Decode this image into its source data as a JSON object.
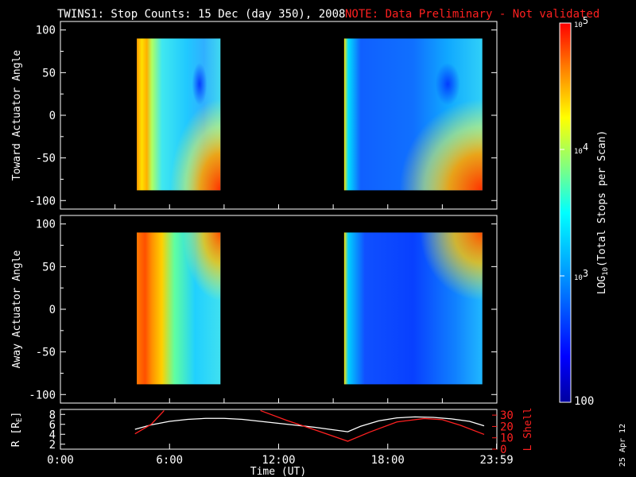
{
  "header": {
    "title": "TWINS1: Stop Counts: 15 Dec (day 350), 2008",
    "note": "NOTE: Data Preliminary - Not validated"
  },
  "side_date": "25 Apr 12",
  "colors": {
    "background": "#000000",
    "axes": "#ffffff",
    "note": "#ff2020",
    "r_line": "#ffffff",
    "lshell_line": "#ff2020"
  },
  "chart_data": [
    {
      "type": "heatmap",
      "ylabel": "Toward Actuator Angle",
      "ylim": [
        -110,
        110
      ],
      "xlim": [
        0,
        24
      ],
      "yticks": [
        -100,
        -50,
        0,
        50,
        100
      ],
      "ytick_labels": [
        "-100",
        "-50",
        "0",
        "50",
        "100"
      ],
      "blocks": [
        {
          "x": [
            4.2,
            8.8
          ],
          "y": [
            -88,
            90
          ]
        },
        {
          "x": [
            15.6,
            23.2
          ],
          "y": [
            -88,
            90
          ]
        }
      ]
    },
    {
      "type": "heatmap",
      "ylabel": "Away Actuator Angle",
      "ylim": [
        -110,
        110
      ],
      "xlim": [
        0,
        24
      ],
      "yticks": [
        -100,
        -50,
        0,
        50,
        100
      ],
      "ytick_labels": [
        "-100",
        "-50",
        "0",
        "50",
        "100"
      ],
      "blocks": [
        {
          "x": [
            4.2,
            8.8
          ],
          "y": [
            -88,
            90
          ]
        },
        {
          "x": [
            15.6,
            23.2
          ],
          "y": [
            -88,
            90
          ]
        }
      ]
    },
    {
      "type": "line",
      "ylabel": "R [RE]",
      "ylabel_main": "R [R",
      "ylabel_sub": "E",
      "ylabel_close": "]",
      "ylim": [
        1,
        9
      ],
      "yticks": [
        2,
        4,
        6,
        8
      ],
      "ytick_labels": [
        "2",
        "4",
        "6",
        "8"
      ],
      "right_ylabel": "L Shell",
      "right_ylim": [
        0,
        35
      ],
      "right_yticks": [
        0,
        10,
        20,
        30
      ],
      "right_ytick_labels": [
        "0",
        "10",
        "20",
        "30"
      ],
      "xlabel": "Time (UT)",
      "xlim": [
        0,
        24
      ],
      "xticks": [
        0,
        6,
        12,
        18,
        23.983
      ],
      "xtick_labels": [
        "0:00",
        "6:00",
        "12:00",
        "18:00",
        "23:59"
      ],
      "series": [
        {
          "axis": "left",
          "x": [
            4.1,
            5,
            6,
            7,
            8,
            9,
            10,
            11,
            12,
            13,
            14,
            15,
            15.8,
            16.5,
            17.5,
            18.5,
            19.5,
            20.5,
            21.5,
            22.5,
            23.3
          ],
          "y": [
            5.0,
            5.9,
            6.6,
            7.0,
            7.2,
            7.2,
            7.0,
            6.6,
            6.2,
            5.8,
            5.4,
            4.9,
            4.5,
            5.6,
            6.7,
            7.3,
            7.5,
            7.4,
            7.1,
            6.6,
            5.7
          ]
        },
        {
          "axis": "right",
          "segments": [
            {
              "x": [
                4.1,
                5,
                5.7
              ],
              "y": [
                13.5,
                22,
                34
              ]
            },
            {
              "x": [
                11.0,
                12.5,
                14,
                15.8,
                17,
                18.5,
                20,
                21,
                22,
                23.3
              ],
              "y": [
                34,
                25,
                17,
                7,
                15,
                24,
                27,
                26,
                21,
                13
              ]
            }
          ]
        }
      ]
    }
  ],
  "colorbar": {
    "label_main": "LOG",
    "label_sub": "10",
    "label_rest": "(Total Stops per Scan)",
    "range": [
      100,
      100000
    ],
    "ticks": [
      {
        "base": "10",
        "exp": "5",
        "value": 100000
      },
      {
        "base": "10",
        "exp": "4",
        "value": 10000
      },
      {
        "base": "10",
        "exp": "3",
        "value": 1000
      }
    ],
    "bottom_label": "100"
  }
}
